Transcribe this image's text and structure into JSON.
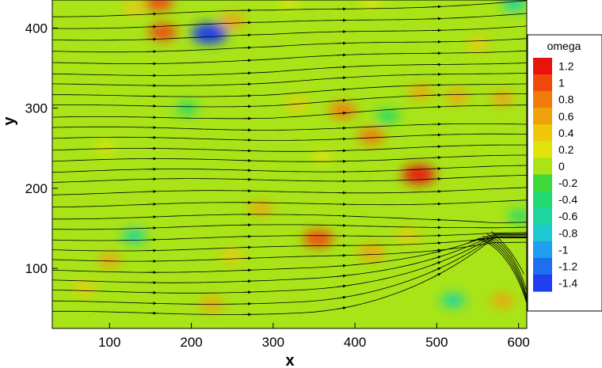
{
  "chart_data": {
    "type": "heatmap",
    "title": "",
    "xlabel": "x",
    "ylabel": "y",
    "xlim": [
      30,
      610
    ],
    "ylim": [
      25,
      435
    ],
    "x_ticks": [
      100,
      200,
      300,
      400,
      500,
      600
    ],
    "y_ticks": [
      100,
      200,
      300,
      400
    ],
    "legend_title": "omega",
    "legend_placement": "right",
    "colorbar": {
      "min": -1.5,
      "max": 1.3,
      "labels": [
        "1.2",
        "1",
        "0.8",
        "0.6",
        "0.4",
        "0.2",
        "0",
        "-0.2",
        "-0.4",
        "-0.6",
        "-0.8",
        "-1",
        "-1.2",
        "-1.4"
      ],
      "levels": [
        1.2,
        1.0,
        0.8,
        0.6,
        0.4,
        0.2,
        0.0,
        -0.2,
        -0.4,
        -0.6,
        -0.8,
        -1.0,
        -1.2,
        -1.4
      ],
      "colors": [
        "#e8140c",
        "#f04a0a",
        "#f07a0a",
        "#f0a20a",
        "#f0c80a",
        "#e0e40a",
        "#a8e418",
        "#3ed83a",
        "#22d870",
        "#1ed6a0",
        "#1ec8d0",
        "#1e9ef0",
        "#1e6ef0",
        "#1e3ef0"
      ]
    },
    "background_value": 0.0,
    "features": [
      {
        "x": 160,
        "y": 432,
        "value": 0.9
      },
      {
        "x": 165,
        "y": 395,
        "value": 0.9
      },
      {
        "x": 222,
        "y": 393,
        "value": -1.4
      },
      {
        "x": 250,
        "y": 408,
        "value": 0.7
      },
      {
        "x": 320,
        "y": 432,
        "value": 0.3
      },
      {
        "x": 420,
        "y": 432,
        "value": 0.3
      },
      {
        "x": 595,
        "y": 430,
        "value": -0.6
      },
      {
        "x": 130,
        "y": 425,
        "value": 0.4
      },
      {
        "x": 385,
        "y": 297,
        "value": 0.8
      },
      {
        "x": 420,
        "y": 265,
        "value": 0.8
      },
      {
        "x": 440,
        "y": 290,
        "value": -0.5
      },
      {
        "x": 480,
        "y": 320,
        "value": 0.5
      },
      {
        "x": 525,
        "y": 315,
        "value": 0.5
      },
      {
        "x": 580,
        "y": 312,
        "value": 0.5
      },
      {
        "x": 478,
        "y": 217,
        "value": 1.2
      },
      {
        "x": 355,
        "y": 137,
        "value": 1.0
      },
      {
        "x": 420,
        "y": 120,
        "value": 0.7
      },
      {
        "x": 465,
        "y": 140,
        "value": 0.4
      },
      {
        "x": 130,
        "y": 140,
        "value": -0.6
      },
      {
        "x": 100,
        "y": 110,
        "value": 0.5
      },
      {
        "x": 195,
        "y": 300,
        "value": -0.4
      },
      {
        "x": 285,
        "y": 175,
        "value": 0.5
      },
      {
        "x": 330,
        "y": 305,
        "value": 0.4
      },
      {
        "x": 520,
        "y": 60,
        "value": -0.6
      },
      {
        "x": 580,
        "y": 60,
        "value": 0.5
      },
      {
        "x": 225,
        "y": 55,
        "value": 0.5
      },
      {
        "x": 70,
        "y": 75,
        "value": 0.4
      },
      {
        "x": 95,
        "y": 250,
        "value": 0.3
      },
      {
        "x": 600,
        "y": 165,
        "value": -0.4
      },
      {
        "x": 550,
        "y": 380,
        "value": 0.4
      },
      {
        "x": 360,
        "y": 240,
        "value": 0.3
      },
      {
        "x": 250,
        "y": 115,
        "value": 0.4
      }
    ],
    "streamline_starts_y": [
      45,
      58,
      72,
      85,
      98,
      112,
      125,
      138,
      152,
      165,
      180,
      195,
      210,
      222,
      235,
      248,
      262,
      275,
      290,
      305,
      318,
      332,
      345,
      360,
      375,
      390,
      405,
      420
    ],
    "vortex_center": {
      "x": 570,
      "y": 148
    }
  }
}
